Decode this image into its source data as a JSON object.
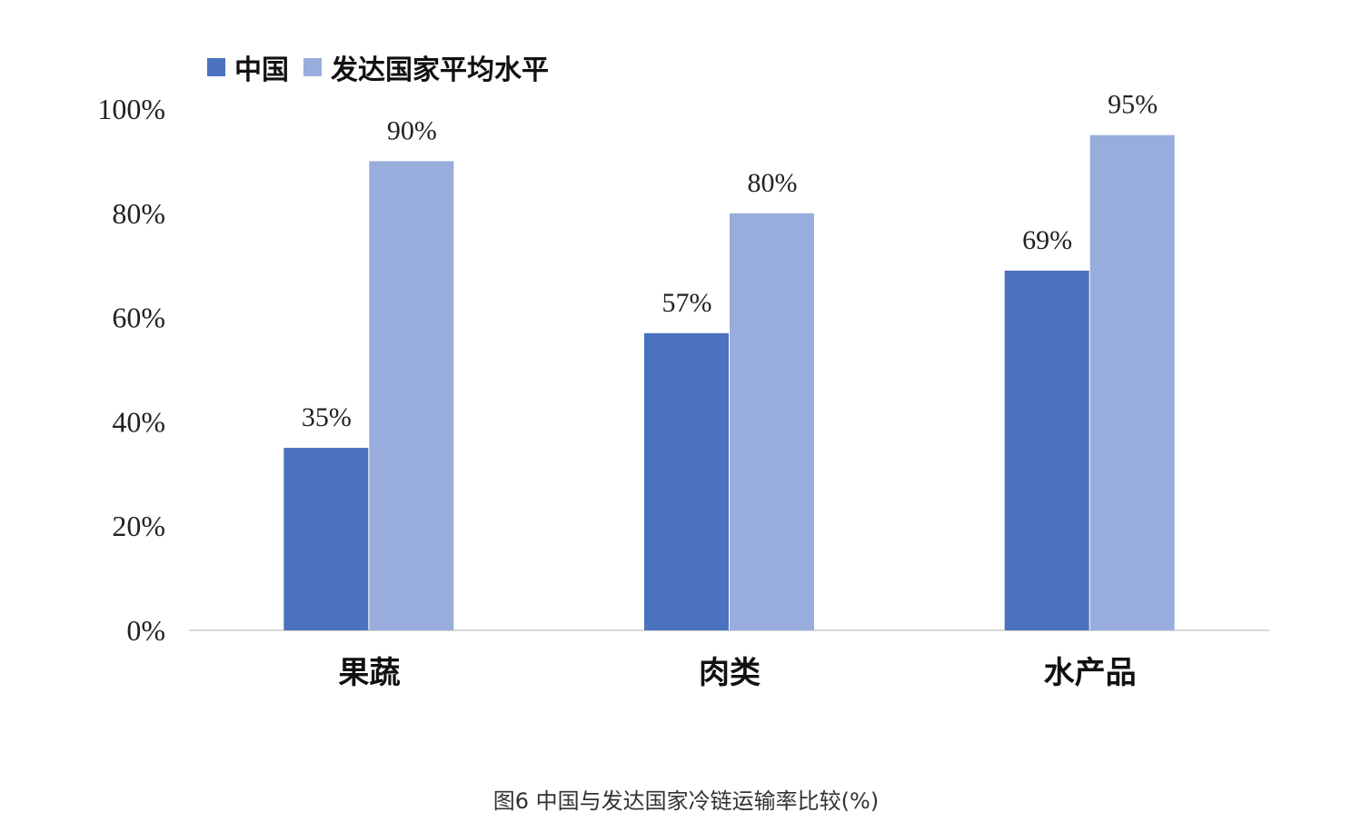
{
  "chart_data": {
    "type": "bar",
    "categories": [
      "果蔬",
      "肉类",
      "水产品"
    ],
    "series": [
      {
        "name": "中国",
        "values": [
          35,
          57,
          69
        ],
        "color": "#4b72be"
      },
      {
        "name": "发达国家平均水平",
        "values": [
          90,
          80,
          95
        ],
        "color": "#99addc"
      }
    ],
    "value_labels": [
      [
        "35%",
        "57%",
        "69%"
      ],
      [
        "90%",
        "80%",
        "95%"
      ]
    ],
    "y_ticks": [
      "0%",
      "20%",
      "40%",
      "60%",
      "80%",
      "100%"
    ],
    "ylim": [
      0,
      100
    ],
    "grid": false,
    "legend_position": "top-left"
  },
  "caption": "图6 中国与发达国家冷链运输率比较(%)"
}
